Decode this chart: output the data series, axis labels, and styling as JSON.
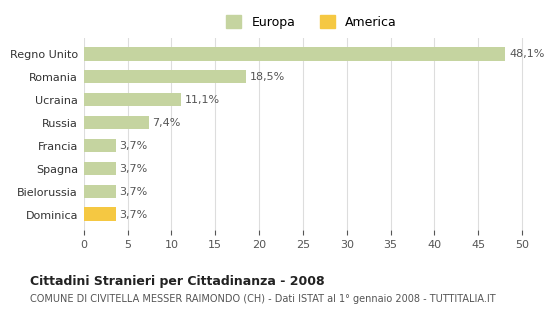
{
  "categories": [
    "Regno Unito",
    "Romania",
    "Ucraina",
    "Russia",
    "Francia",
    "Spagna",
    "Bielorussia",
    "Dominica"
  ],
  "values": [
    48.1,
    18.5,
    11.1,
    7.4,
    3.7,
    3.7,
    3.7,
    3.7
  ],
  "labels": [
    "48,1%",
    "18,5%",
    "11,1%",
    "7,4%",
    "3,7%",
    "3,7%",
    "3,7%",
    "3,7%"
  ],
  "colors": [
    "#c5d4a0",
    "#c5d4a0",
    "#c5d4a0",
    "#c5d4a0",
    "#c5d4a0",
    "#c5d4a0",
    "#c5d4a0",
    "#f5c842"
  ],
  "europa_color": "#c5d4a0",
  "america_color": "#f5c842",
  "xlim": [
    0,
    52
  ],
  "xticks": [
    0,
    5,
    10,
    15,
    20,
    25,
    30,
    35,
    40,
    45,
    50
  ],
  "title": "Cittadini Stranieri per Cittadinanza - 2008",
  "subtitle": "COMUNE DI CIVITELLA MESSER RAIMONDO (CH) - Dati ISTAT al 1° gennaio 2008 - TUTTITALIA.IT",
  "legend_labels": [
    "Europa",
    "America"
  ],
  "background_color": "#ffffff",
  "grid_color": "#dddddd"
}
